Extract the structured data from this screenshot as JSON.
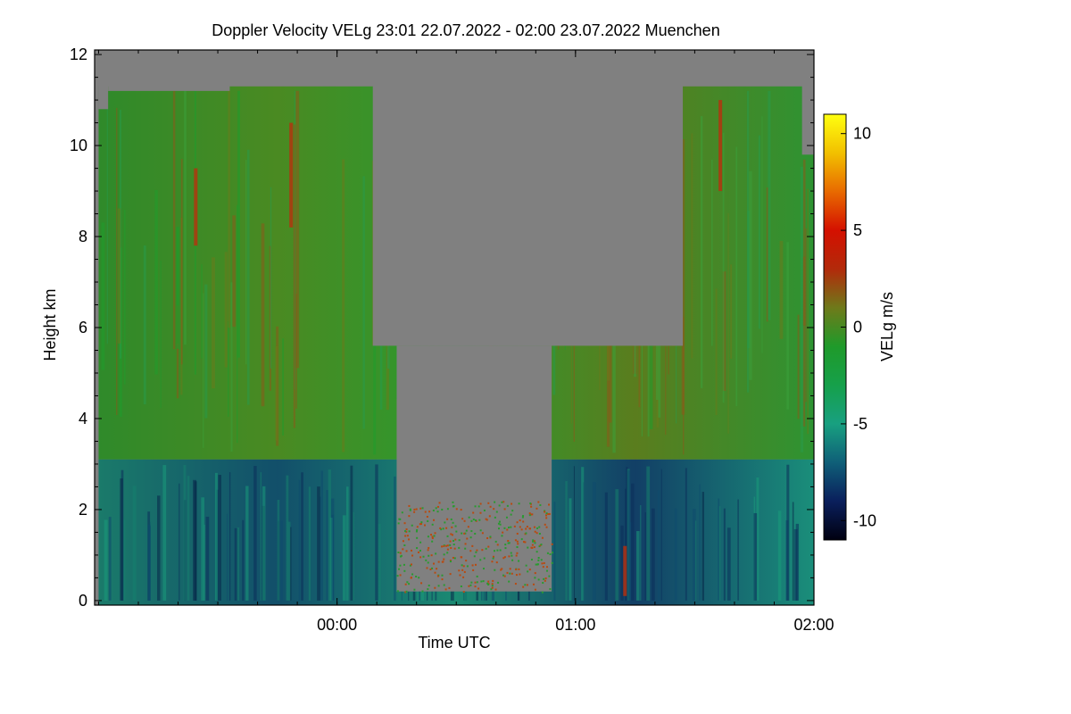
{
  "chart_data": {
    "type": "heatmap",
    "title": "Doppler Velocity VELg   23:01 22.07.2022 - 02:00 23.07.2022 Muenchen",
    "xlabel": "Time UTC",
    "ylabel": "Height km",
    "x_ticks": [
      "00:00",
      "01:00",
      "02:00"
    ],
    "x_tick_hours": [
      1,
      2,
      3
    ],
    "xlim_hours": [
      -0.0167,
      3.0
    ],
    "y_ticks": [
      0,
      2,
      4,
      6,
      8,
      10,
      12
    ],
    "ylim": [
      -0.1,
      12.1
    ],
    "colorbar": {
      "label": "VELg m/s",
      "ticks": [
        10,
        5,
        0,
        -5,
        -10
      ],
      "range": [
        -11,
        11
      ],
      "colors": [
        "#000010",
        "#0a1f5c",
        "#0f5f78",
        "#18a080",
        "#16a04a",
        "#1f9a2a",
        "#6e7a1a",
        "#b22a0a",
        "#d41000",
        "#e86a00",
        "#f2c000",
        "#ffff10"
      ]
    },
    "background_color": "#808080",
    "gray_regions": [
      {
        "t0": 0.0,
        "t1": 0.04,
        "h0": 10.8,
        "h1": 12.0
      },
      {
        "t0": 0.04,
        "t1": 0.55,
        "h0": 11.2,
        "h1": 12.0
      },
      {
        "t0": 1.15,
        "t1": 2.45,
        "h0": 5.6,
        "h1": 12.0
      },
      {
        "t0": 1.25,
        "t1": 1.9,
        "h0": 0.2,
        "h1": 5.6
      },
      {
        "t0": 2.95,
        "t1": 3.0,
        "h0": 9.8,
        "h1": 12.0
      }
    ]
  }
}
